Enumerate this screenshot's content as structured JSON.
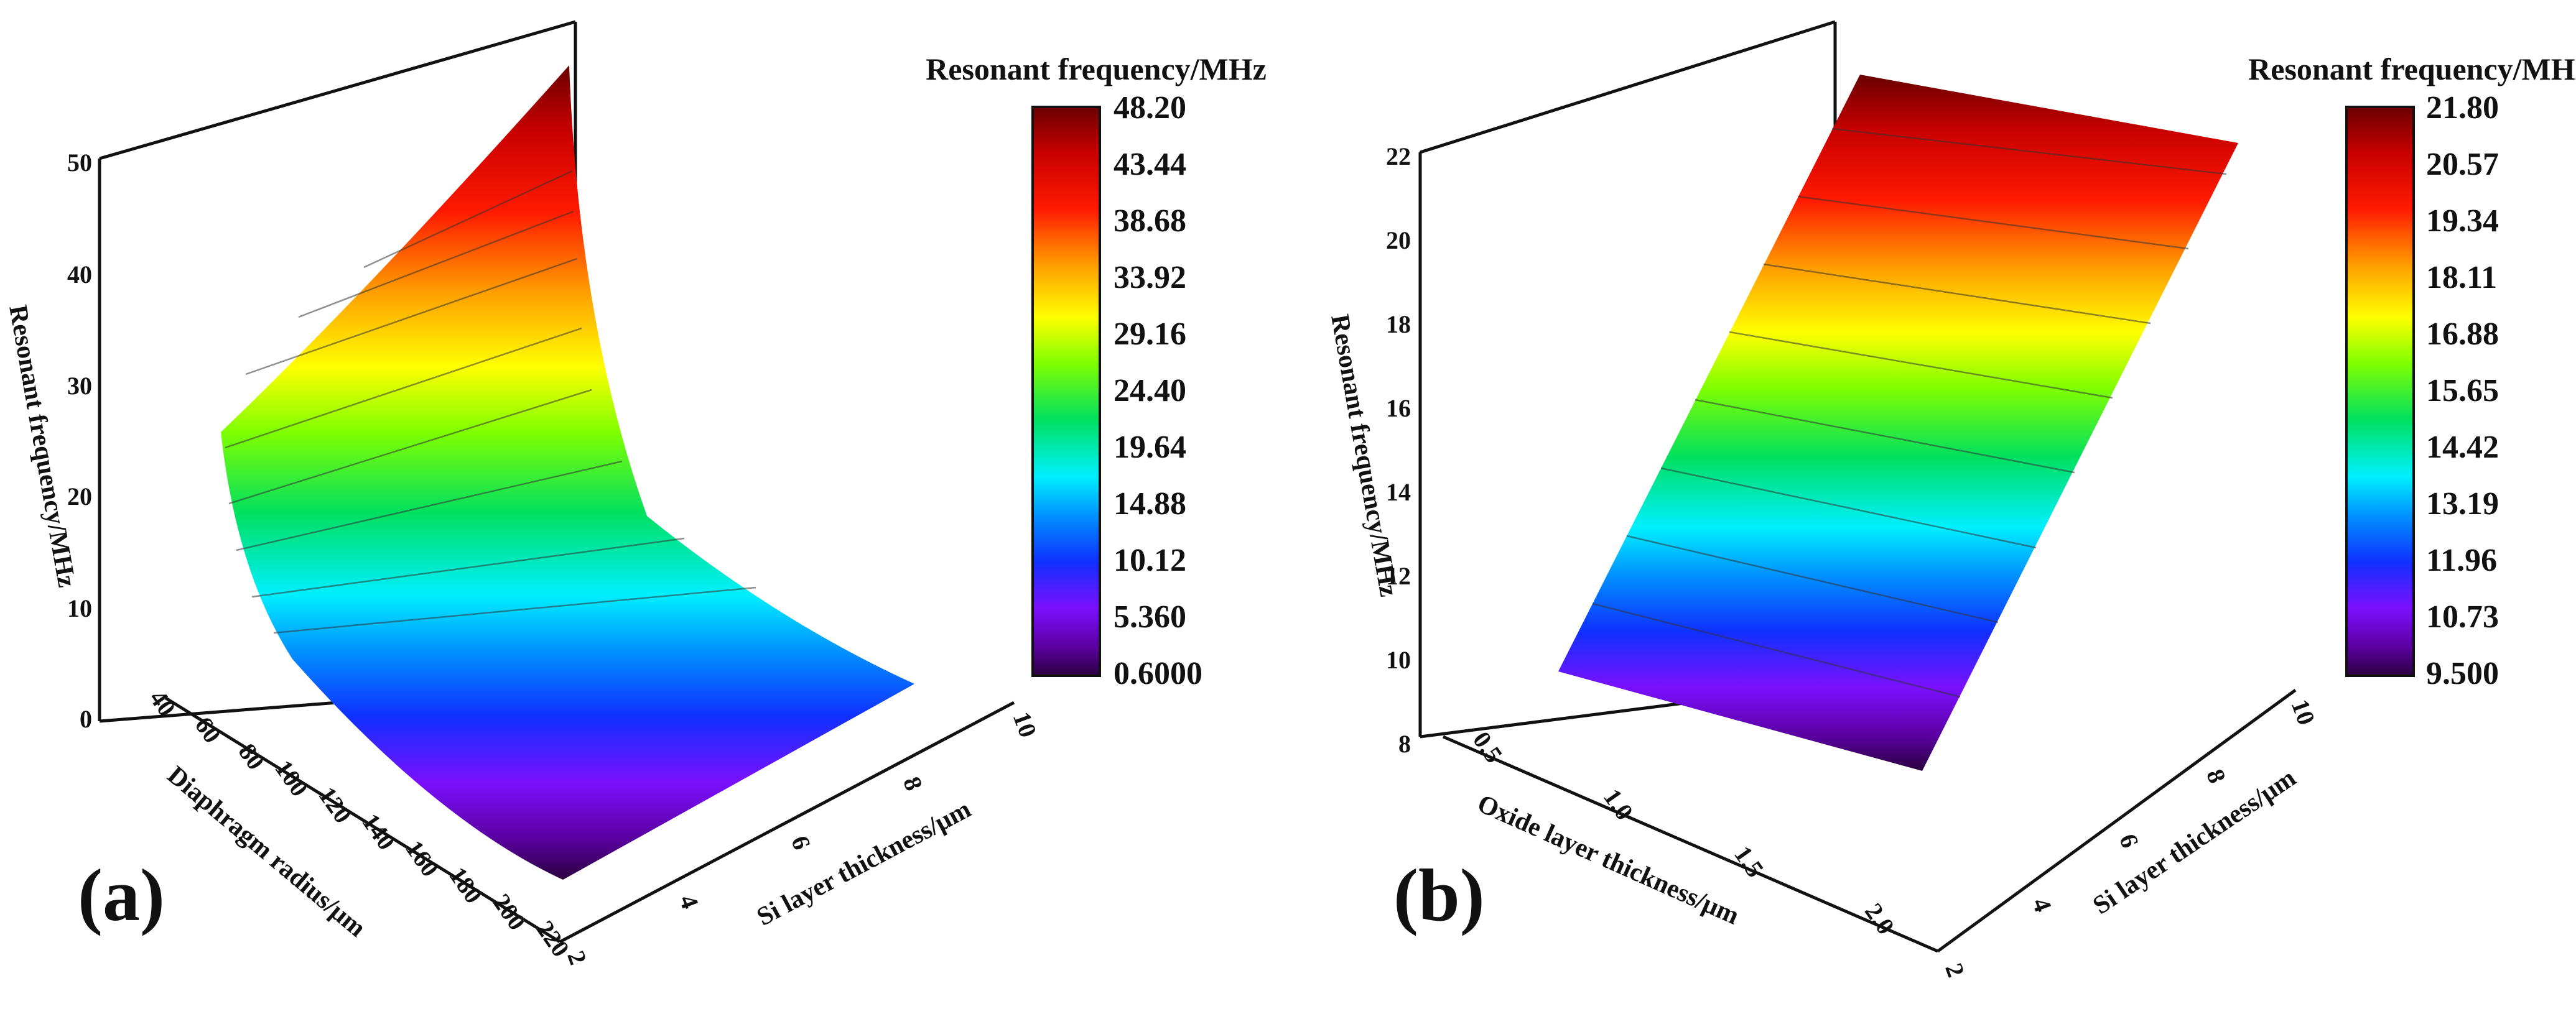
{
  "chart_data": [
    {
      "type": "surface3d",
      "panel_label": "(a)",
      "colorbar": {
        "title": "Resonant frequency/MHz",
        "ticks": [
          "48.20",
          "43.44",
          "38.68",
          "33.92",
          "29.16",
          "24.40",
          "19.64",
          "14.88",
          "10.12",
          "5.360",
          "0.6000"
        ],
        "min": 0.6,
        "max": 48.2
      },
      "z_axis": {
        "label": "Resonant frequency/MHz",
        "ticks": [
          "0",
          "10",
          "20",
          "30",
          "40",
          "50"
        ],
        "range": [
          0,
          50
        ]
      },
      "x_axis": {
        "label": "Diaphragm radius/μm",
        "ticks": [
          "40",
          "60",
          "80",
          "100",
          "120",
          "140",
          "160",
          "180",
          "200",
          "220"
        ],
        "range": [
          40,
          220
        ]
      },
      "y_axis": {
        "label": "Si layer thickness/μm",
        "ticks": [
          "2",
          "4",
          "6",
          "8",
          "10"
        ],
        "range": [
          2,
          10
        ]
      },
      "surface": {
        "corner_values": {
          "r40_t2": 25.3,
          "r40_t10": 48.2,
          "r220_t2": 0.8,
          "r220_t10": 4.0
        }
      }
    },
    {
      "type": "surface3d",
      "panel_label": "(b)",
      "colorbar": {
        "title": "Resonant frequency/MHz",
        "ticks": [
          "21.80",
          "20.57",
          "19.34",
          "18.11",
          "16.88",
          "15.65",
          "14.42",
          "13.19",
          "11.96",
          "10.73",
          "9.500"
        ],
        "min": 9.5,
        "max": 21.8
      },
      "z_axis": {
        "label": "Resonant frequency/MHz",
        "ticks": [
          "8",
          "10",
          "12",
          "14",
          "16",
          "18",
          "20",
          "22"
        ],
        "range": [
          8,
          22
        ]
      },
      "x_axis": {
        "label": "Oxide layer thickness/μm",
        "ticks": [
          "0.5",
          "1.0",
          "1.5",
          "2.0"
        ],
        "range": [
          0.3,
          2.2
        ]
      },
      "y_axis": {
        "label": "Si layer thickness/μm",
        "ticks": [
          "2",
          "4",
          "6",
          "8",
          "10"
        ],
        "range": [
          2,
          10
        ]
      },
      "surface": {
        "corner_values": {
          "ox0.3_t2": 9.6,
          "ox0.3_t10": 21.8,
          "ox2.2_t2": 9.5,
          "ox2.2_t10": 20.8
        }
      }
    }
  ]
}
